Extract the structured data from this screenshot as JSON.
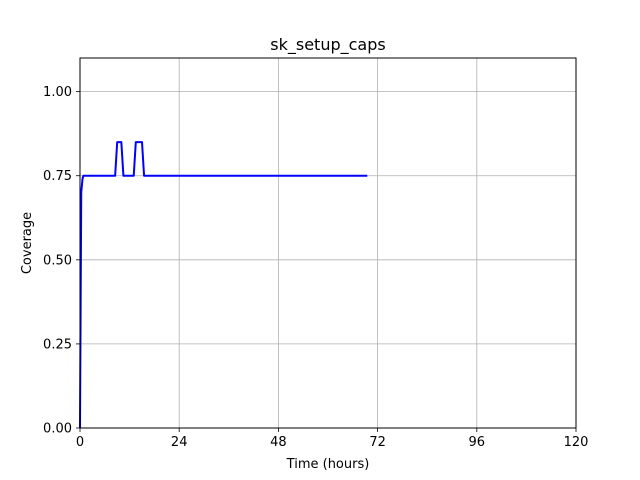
{
  "chart_data": {
    "type": "line",
    "title": "sk_setup_caps",
    "xlabel": "Time (hours)",
    "ylabel": "Coverage",
    "xlim": [
      0,
      120
    ],
    "ylim": [
      0,
      1.1
    ],
    "xticks": [
      0,
      24,
      48,
      72,
      96,
      120
    ],
    "xtick_labels": [
      "0",
      "24",
      "48",
      "72",
      "96",
      "120"
    ],
    "yticks": [
      0,
      0.25,
      0.5,
      0.75,
      1.0
    ],
    "ytick_labels": [
      "0.00",
      "0.25",
      "0.50",
      "0.75",
      "1.00"
    ],
    "grid": true,
    "series": [
      {
        "color": "#0000ff",
        "x": [
          0,
          0.3,
          0.6,
          0.8,
          8.5,
          9.0,
          10.0,
          10.5,
          13.0,
          13.5,
          15.0,
          15.5,
          69.5
        ],
        "y": [
          0,
          0.7,
          0.74,
          0.75,
          0.75,
          0.85,
          0.85,
          0.75,
          0.75,
          0.85,
          0.85,
          0.75,
          0.75
        ]
      }
    ]
  }
}
